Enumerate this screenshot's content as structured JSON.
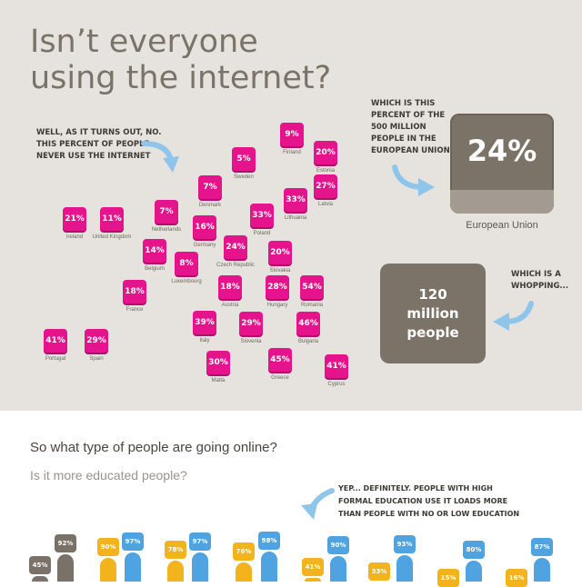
{
  "title": {
    "line1": "Isn’t everyone",
    "line2": "using the internet?"
  },
  "note_left": [
    "Well, as it turns out, no.",
    "This percent of people",
    "never use the internet"
  ],
  "note_right": [
    "Which is this",
    "percent of the",
    "500 million",
    "people in the",
    "European Union"
  ],
  "eu": {
    "value": "24%",
    "label": "European Union"
  },
  "whopping_note": [
    "Which is a",
    "whopping..."
  ],
  "million": {
    "line1": "120",
    "line2": "million",
    "line3": "people"
  },
  "countries": [
    {
      "name": "Ireland",
      "value": "21%"
    },
    {
      "name": "United Kingdom",
      "value": "11%"
    },
    {
      "name": "Netherlands",
      "value": "7%"
    },
    {
      "name": "Denmark",
      "value": "7%"
    },
    {
      "name": "Sweden",
      "value": "5%"
    },
    {
      "name": "Finland",
      "value": "9%"
    },
    {
      "name": "Estonia",
      "value": "20%"
    },
    {
      "name": "Latvia",
      "value": "27%"
    },
    {
      "name": "Lithuania",
      "value": "33%"
    },
    {
      "name": "Poland",
      "value": "33%"
    },
    {
      "name": "Germany",
      "value": "16%"
    },
    {
      "name": "Belgium",
      "value": "14%"
    },
    {
      "name": "Luxembourg",
      "value": "8%"
    },
    {
      "name": "Czech Republic",
      "value": "24%"
    },
    {
      "name": "Slovakia",
      "value": "20%"
    },
    {
      "name": "France",
      "value": "18%"
    },
    {
      "name": "Austria",
      "value": "18%"
    },
    {
      "name": "Hungary",
      "value": "28%"
    },
    {
      "name": "Romania",
      "value": "54%"
    },
    {
      "name": "Italy",
      "value": "39%"
    },
    {
      "name": "Slovenia",
      "value": "29%"
    },
    {
      "name": "Bulgaria",
      "value": "46%"
    },
    {
      "name": "Portugal",
      "value": "41%"
    },
    {
      "name": "Spain",
      "value": "29%"
    },
    {
      "name": "Malta",
      "value": "30%"
    },
    {
      "name": "Greece",
      "value": "45%"
    },
    {
      "name": "Cyprus",
      "value": "41%"
    }
  ],
  "section2": {
    "heading": "So what type of people are going online?",
    "subheading": "Is it more educated people?"
  },
  "edu_note": [
    "Yep... definitely. People with high",
    "formal education use it loads more",
    "than people with no or low education"
  ],
  "people": [
    {
      "value": "45%",
      "color": "#7a7168"
    },
    {
      "value": "92%",
      "color": "#7a7168"
    },
    {
      "value": "90%",
      "color": "#f3b31c"
    },
    {
      "value": "97%",
      "color": "#4fa3e0"
    },
    {
      "value": "78%",
      "color": "#f3b31c"
    },
    {
      "value": "97%",
      "color": "#4fa3e0"
    },
    {
      "value": "76%",
      "color": "#f3b31c"
    },
    {
      "value": "98%",
      "color": "#4fa3e0"
    },
    {
      "value": "41%",
      "color": "#f3b31c"
    },
    {
      "value": "90%",
      "color": "#4fa3e0"
    },
    {
      "value": "33%",
      "color": "#f3b31c"
    },
    {
      "value": "93%",
      "color": "#4fa3e0"
    },
    {
      "value": "15%",
      "color": "#f3b31c"
    },
    {
      "value": "80%",
      "color": "#4fa3e0"
    },
    {
      "value": "16%",
      "color": "#f3b31c"
    },
    {
      "value": "87%",
      "color": "#4fa3e0"
    }
  ]
}
